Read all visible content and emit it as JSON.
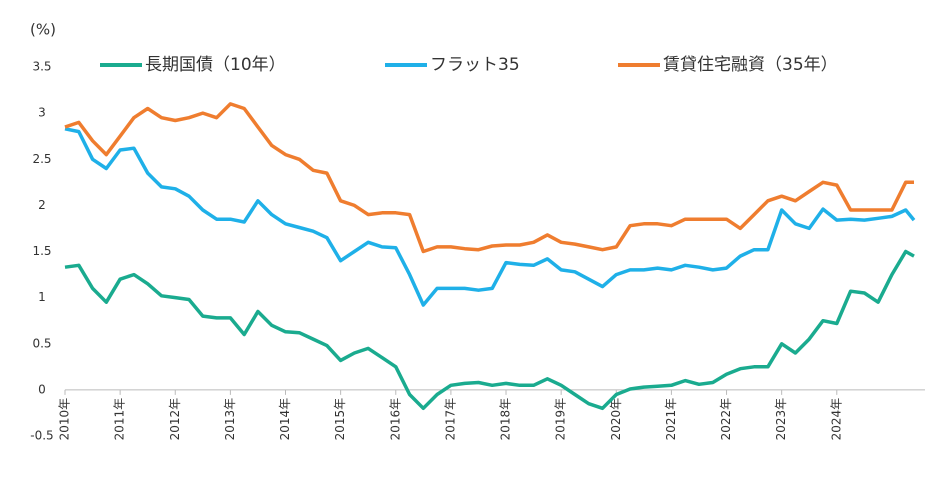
{
  "chart_data": {
    "type": "line",
    "y_axis_label": "(%)",
    "x": [
      2010,
      2010.25,
      2010.5,
      2010.75,
      2011,
      2011.25,
      2011.5,
      2011.75,
      2012,
      2012.25,
      2012.5,
      2012.75,
      2013,
      2013.25,
      2013.5,
      2013.75,
      2014,
      2014.25,
      2014.5,
      2014.75,
      2015,
      2015.25,
      2015.5,
      2015.75,
      2016,
      2016.25,
      2016.5,
      2016.75,
      2017,
      2017.25,
      2017.5,
      2017.75,
      2018,
      2018.25,
      2018.5,
      2018.75,
      2019,
      2019.25,
      2019.5,
      2019.75,
      2020,
      2020.25,
      2020.5,
      2020.75,
      2021,
      2021.25,
      2021.5,
      2021.75,
      2022,
      2022.25,
      2022.5,
      2022.75,
      2023,
      2023.25,
      2023.5,
      2023.75,
      2024,
      2024.25,
      2024.5,
      2024.75,
      2025,
      2025.25,
      2025.4
    ],
    "series": [
      {
        "name": "長期国債（10年）",
        "color": "#1aab8f",
        "values": [
          1.33,
          1.35,
          1.1,
          0.95,
          1.2,
          1.25,
          1.15,
          1.02,
          1.0,
          0.98,
          0.8,
          0.78,
          0.78,
          0.6,
          0.85,
          0.7,
          0.63,
          0.62,
          0.55,
          0.48,
          0.32,
          0.4,
          0.45,
          0.35,
          0.25,
          -0.05,
          -0.2,
          -0.05,
          0.05,
          0.07,
          0.08,
          0.05,
          0.07,
          0.05,
          0.05,
          0.12,
          0.05,
          -0.05,
          -0.15,
          -0.2,
          -0.05,
          0.01,
          0.03,
          0.04,
          0.05,
          0.1,
          0.06,
          0.08,
          0.17,
          0.23,
          0.25,
          0.25,
          0.5,
          0.4,
          0.55,
          0.75,
          0.72,
          1.07,
          1.05,
          0.95,
          1.25,
          1.5,
          1.45
        ]
      },
      {
        "name": "フラット35",
        "color": "#1fb0e8",
        "values": [
          2.83,
          2.8,
          2.5,
          2.4,
          2.6,
          2.62,
          2.35,
          2.2,
          2.18,
          2.1,
          1.95,
          1.85,
          1.85,
          1.82,
          2.05,
          1.9,
          1.8,
          1.76,
          1.72,
          1.65,
          1.4,
          1.5,
          1.6,
          1.55,
          1.54,
          1.25,
          0.92,
          1.1,
          1.1,
          1.1,
          1.08,
          1.1,
          1.38,
          1.36,
          1.35,
          1.42,
          1.3,
          1.28,
          1.2,
          1.12,
          1.25,
          1.3,
          1.3,
          1.32,
          1.3,
          1.35,
          1.33,
          1.3,
          1.32,
          1.45,
          1.52,
          1.52,
          1.95,
          1.8,
          1.75,
          1.96,
          1.84,
          1.85,
          1.84,
          1.86,
          1.88,
          1.95,
          1.84
        ]
      },
      {
        "name": "賃貸住宅融資（35年）",
        "color": "#ef7d2f",
        "values": [
          2.85,
          2.9,
          2.7,
          2.55,
          2.75,
          2.95,
          3.05,
          2.95,
          2.92,
          2.95,
          3.0,
          2.95,
          3.1,
          3.05,
          2.85,
          2.65,
          2.55,
          2.5,
          2.38,
          2.35,
          2.05,
          2.0,
          1.9,
          1.92,
          1.92,
          1.9,
          1.5,
          1.55,
          1.55,
          1.53,
          1.52,
          1.56,
          1.57,
          1.57,
          1.6,
          1.68,
          1.6,
          1.58,
          1.55,
          1.52,
          1.55,
          1.78,
          1.8,
          1.8,
          1.78,
          1.85,
          1.85,
          1.85,
          1.85,
          1.75,
          1.9,
          2.05,
          2.1,
          2.05,
          2.15,
          2.25,
          2.22,
          1.95,
          1.95,
          1.95,
          1.95,
          2.25,
          2.25
        ]
      }
    ],
    "xlim": [
      2010,
      2025.6
    ],
    "xticks": [
      {
        "value": 2010,
        "label": "2010年"
      },
      {
        "value": 2011,
        "label": "2011年"
      },
      {
        "value": 2012,
        "label": "2012年"
      },
      {
        "value": 2013,
        "label": "2013年"
      },
      {
        "value": 2014,
        "label": "2014年"
      },
      {
        "value": 2015,
        "label": "2015年"
      },
      {
        "value": 2016,
        "label": "2016年"
      },
      {
        "value": 2017,
        "label": "2017年"
      },
      {
        "value": 2018,
        "label": "2018年"
      },
      {
        "value": 2019,
        "label": "2019年"
      },
      {
        "value": 2020,
        "label": "2020年"
      },
      {
        "value": 2021,
        "label": "2021年"
      },
      {
        "value": 2022,
        "label": "2022年"
      },
      {
        "value": 2023,
        "label": "2023年"
      },
      {
        "value": 2024,
        "label": "2024年"
      }
    ],
    "ylim": [
      -0.5,
      3.5
    ],
    "yticks": [
      3.5,
      3,
      2.5,
      2,
      1.5,
      1,
      0.5,
      0,
      -0.5
    ],
    "grid": false
  }
}
